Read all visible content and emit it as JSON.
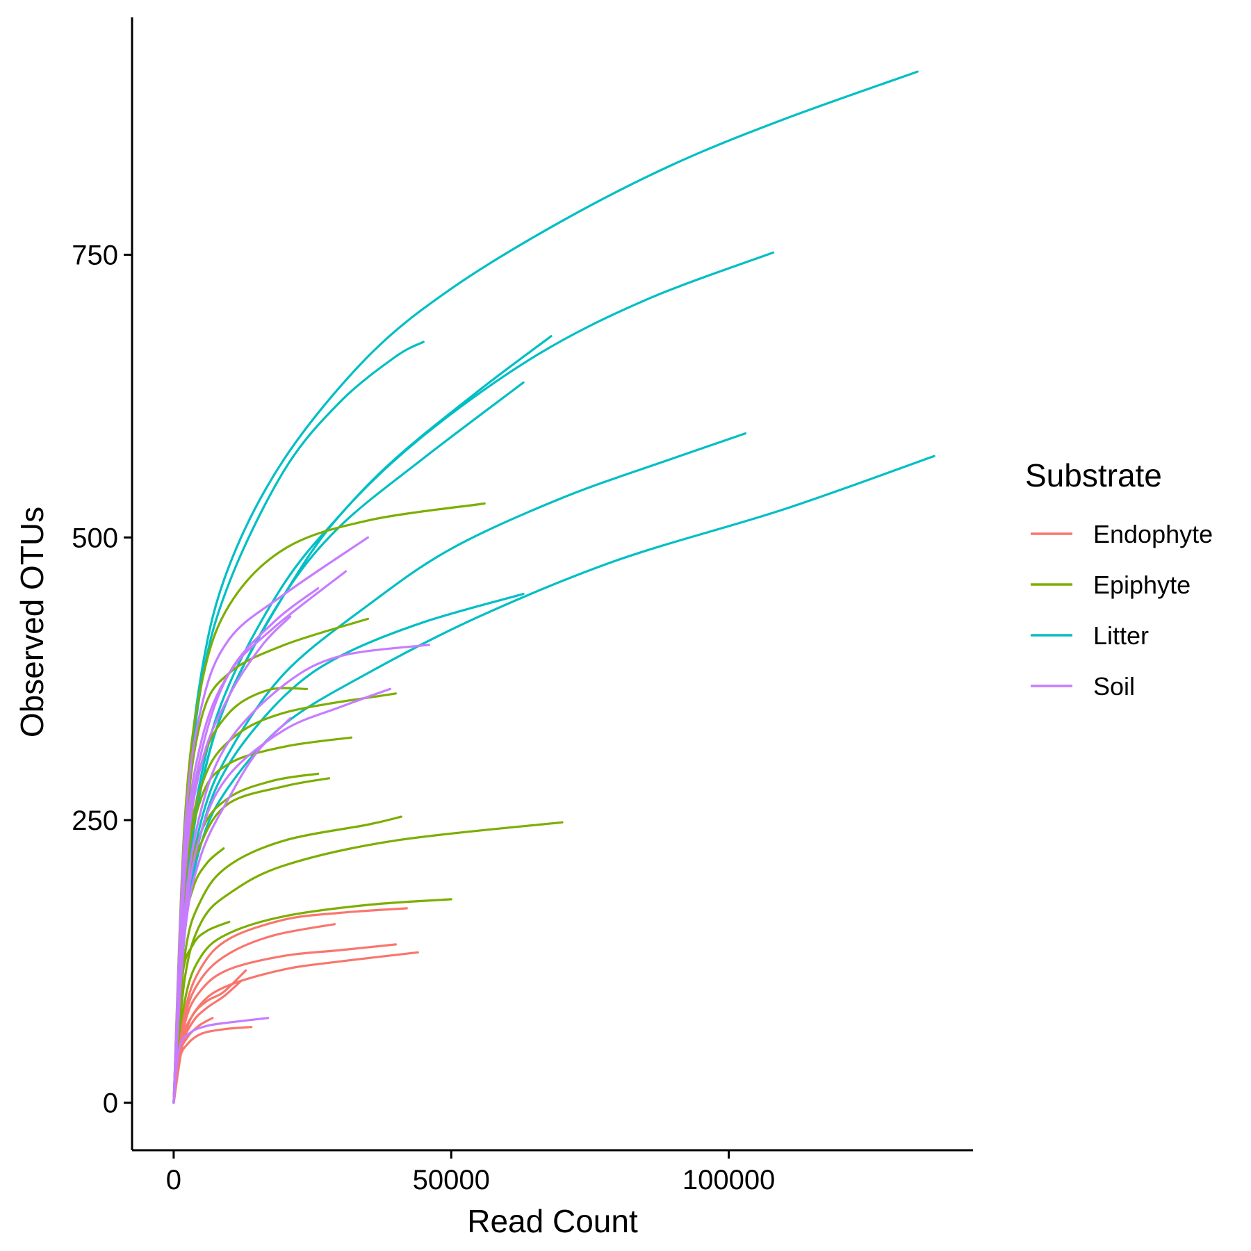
{
  "chart_data": {
    "type": "line",
    "xlabel": "Read Count",
    "ylabel": "Observed OTUs",
    "xlim": [
      -7500,
      144000
    ],
    "ylim": [
      -42,
      960
    ],
    "xticks": [
      0,
      50000,
      100000
    ],
    "xtick_labels": [
      "0",
      "50000",
      "100000"
    ],
    "yticks": [
      0,
      250,
      500,
      750
    ],
    "ytick_labels": [
      "0",
      "250",
      "500",
      "750"
    ],
    "grid": false,
    "legend": {
      "title": "Substrate",
      "placement": "right",
      "entries": [
        {
          "label": "Endophyte",
          "color": "#F8766D"
        },
        {
          "label": "Epiphyte",
          "color": "#7CAE00"
        },
        {
          "label": "Litter",
          "color": "#00BFC4"
        },
        {
          "label": "Soil",
          "color": "#C77CFF"
        }
      ]
    },
    "series": [
      {
        "group": "Litter",
        "color": "#00BFC4",
        "points": [
          [
            0,
            0
          ],
          [
            2000,
            240
          ],
          [
            5000,
            380
          ],
          [
            10000,
            475
          ],
          [
            20000,
            570
          ],
          [
            35000,
            660
          ],
          [
            50000,
            720
          ],
          [
            70000,
            780
          ],
          [
            90000,
            830
          ],
          [
            110000,
            870
          ],
          [
            134000,
            912
          ]
        ]
      },
      {
        "group": "Litter",
        "color": "#00BFC4",
        "points": [
          [
            0,
            0
          ],
          [
            2000,
            230
          ],
          [
            5000,
            370
          ],
          [
            10000,
            460
          ],
          [
            20000,
            560
          ],
          [
            30000,
            620
          ],
          [
            40000,
            660
          ],
          [
            45000,
            673
          ]
        ]
      },
      {
        "group": "Litter",
        "color": "#00BFC4",
        "points": [
          [
            0,
            0
          ],
          [
            2000,
            180
          ],
          [
            5000,
            280
          ],
          [
            10000,
            360
          ],
          [
            20000,
            450
          ],
          [
            30000,
            520
          ],
          [
            45000,
            590
          ],
          [
            65000,
            660
          ],
          [
            85000,
            710
          ],
          [
            108000,
            752
          ]
        ]
      },
      {
        "group": "Litter",
        "color": "#00BFC4",
        "points": [
          [
            0,
            0
          ],
          [
            2000,
            180
          ],
          [
            5000,
            290
          ],
          [
            10000,
            370
          ],
          [
            20000,
            460
          ],
          [
            30000,
            520
          ],
          [
            40000,
            570
          ],
          [
            55000,
            630
          ],
          [
            68000,
            678
          ]
        ]
      },
      {
        "group": "Litter",
        "color": "#00BFC4",
        "points": [
          [
            0,
            0
          ],
          [
            2000,
            170
          ],
          [
            5000,
            280
          ],
          [
            10000,
            360
          ],
          [
            20000,
            450
          ],
          [
            30000,
            510
          ],
          [
            45000,
            570
          ],
          [
            63000,
            637
          ]
        ]
      },
      {
        "group": "Litter",
        "color": "#00BFC4",
        "points": [
          [
            0,
            0
          ],
          [
            2000,
            160
          ],
          [
            5000,
            250
          ],
          [
            10000,
            310
          ],
          [
            20000,
            380
          ],
          [
            35000,
            440
          ],
          [
            50000,
            490
          ],
          [
            70000,
            535
          ],
          [
            90000,
            570
          ],
          [
            103000,
            592
          ]
        ]
      },
      {
        "group": "Litter",
        "color": "#00BFC4",
        "points": [
          [
            0,
            0
          ],
          [
            2000,
            150
          ],
          [
            5000,
            230
          ],
          [
            10000,
            280
          ],
          [
            20000,
            335
          ],
          [
            35000,
            380
          ],
          [
            55000,
            430
          ],
          [
            80000,
            480
          ],
          [
            110000,
            525
          ],
          [
            137000,
            572
          ]
        ]
      },
      {
        "group": "Litter",
        "color": "#00BFC4",
        "points": [
          [
            0,
            0
          ],
          [
            2000,
            150
          ],
          [
            5000,
            240
          ],
          [
            10000,
            300
          ],
          [
            20000,
            360
          ],
          [
            30000,
            395
          ],
          [
            45000,
            425
          ],
          [
            63000,
            450
          ]
        ]
      },
      {
        "group": "Epiphyte",
        "color": "#7CAE00",
        "points": [
          [
            0,
            0
          ],
          [
            2000,
            250
          ],
          [
            5000,
            370
          ],
          [
            10000,
            440
          ],
          [
            20000,
            490
          ],
          [
            35000,
            515
          ],
          [
            56000,
            530
          ]
        ]
      },
      {
        "group": "Epiphyte",
        "color": "#7CAE00",
        "points": [
          [
            0,
            0
          ],
          [
            2000,
            230
          ],
          [
            5000,
            340
          ],
          [
            10000,
            380
          ],
          [
            20000,
            405
          ],
          [
            35000,
            428
          ]
        ]
      },
      {
        "group": "Epiphyte",
        "color": "#7CAE00",
        "points": [
          [
            0,
            0
          ],
          [
            2000,
            210
          ],
          [
            5000,
            300
          ],
          [
            10000,
            345
          ],
          [
            17000,
            365
          ],
          [
            24000,
            366
          ]
        ]
      },
      {
        "group": "Epiphyte",
        "color": "#7CAE00",
        "points": [
          [
            0,
            0
          ],
          [
            2000,
            200
          ],
          [
            5000,
            280
          ],
          [
            10000,
            320
          ],
          [
            20000,
            345
          ],
          [
            40000,
            362
          ]
        ]
      },
      {
        "group": "Epiphyte",
        "color": "#7CAE00",
        "points": [
          [
            0,
            0
          ],
          [
            2000,
            190
          ],
          [
            5000,
            270
          ],
          [
            10000,
            300
          ],
          [
            20000,
            315
          ],
          [
            32000,
            323
          ]
        ]
      },
      {
        "group": "Epiphyte",
        "color": "#7CAE00",
        "points": [
          [
            0,
            0
          ],
          [
            2000,
            170
          ],
          [
            5000,
            240
          ],
          [
            10000,
            270
          ],
          [
            18000,
            285
          ],
          [
            26000,
            291
          ]
        ]
      },
      {
        "group": "Epiphyte",
        "color": "#7CAE00",
        "points": [
          [
            0,
            0
          ],
          [
            2000,
            170
          ],
          [
            5000,
            230
          ],
          [
            10000,
            265
          ],
          [
            20000,
            280
          ],
          [
            28000,
            287
          ]
        ]
      },
      {
        "group": "Epiphyte",
        "color": "#7CAE00",
        "points": [
          [
            0,
            0
          ],
          [
            2000,
            130
          ],
          [
            5000,
            180
          ],
          [
            10000,
            210
          ],
          [
            20000,
            232
          ],
          [
            35000,
            246
          ],
          [
            41000,
            253
          ]
        ]
      },
      {
        "group": "Epiphyte",
        "color": "#7CAE00",
        "points": [
          [
            0,
            0
          ],
          [
            2000,
            110
          ],
          [
            5000,
            160
          ],
          [
            10000,
            185
          ],
          [
            20000,
            210
          ],
          [
            40000,
            232
          ],
          [
            70000,
            248
          ]
        ]
      },
      {
        "group": "Epiphyte",
        "color": "#7CAE00",
        "points": [
          [
            0,
            0
          ],
          [
            1500,
            140
          ],
          [
            3500,
            190
          ],
          [
            6000,
            212
          ],
          [
            9000,
            225
          ]
        ]
      },
      {
        "group": "Epiphyte",
        "color": "#7CAE00",
        "points": [
          [
            0,
            0
          ],
          [
            2000,
            90
          ],
          [
            5000,
            130
          ],
          [
            10000,
            150
          ],
          [
            20000,
            165
          ],
          [
            35000,
            175
          ],
          [
            50000,
            180
          ]
        ]
      },
      {
        "group": "Epiphyte",
        "color": "#7CAE00",
        "points": [
          [
            0,
            0
          ],
          [
            1500,
            110
          ],
          [
            3500,
            140
          ],
          [
            6000,
            152
          ],
          [
            10000,
            160
          ]
        ]
      },
      {
        "group": "Endophyte",
        "color": "#F8766D",
        "points": [
          [
            0,
            0
          ],
          [
            2000,
            80
          ],
          [
            5000,
            120
          ],
          [
            10000,
            145
          ],
          [
            20000,
            162
          ],
          [
            30000,
            168
          ],
          [
            42000,
            172
          ]
        ]
      },
      {
        "group": "Endophyte",
        "color": "#F8766D",
        "points": [
          [
            0,
            0
          ],
          [
            2000,
            75
          ],
          [
            5000,
            110
          ],
          [
            10000,
            132
          ],
          [
            18000,
            148
          ],
          [
            29000,
            158
          ]
        ]
      },
      {
        "group": "Endophyte",
        "color": "#F8766D",
        "points": [
          [
            0,
            0
          ],
          [
            2000,
            70
          ],
          [
            5000,
            100
          ],
          [
            10000,
            118
          ],
          [
            20000,
            130
          ],
          [
            30000,
            135
          ],
          [
            40000,
            140
          ]
        ]
      },
      {
        "group": "Endophyte",
        "color": "#F8766D",
        "points": [
          [
            0,
            0
          ],
          [
            2000,
            60
          ],
          [
            5000,
            88
          ],
          [
            10000,
            104
          ],
          [
            20000,
            118
          ],
          [
            30000,
            125
          ],
          [
            44000,
            133
          ]
        ]
      },
      {
        "group": "Endophyte",
        "color": "#F8766D",
        "points": [
          [
            0,
            0
          ],
          [
            1500,
            55
          ],
          [
            3500,
            78
          ],
          [
            6000,
            90
          ],
          [
            9000,
            98
          ],
          [
            13000,
            117
          ]
        ]
      },
      {
        "group": "Endophyte",
        "color": "#F8766D",
        "points": [
          [
            0,
            0
          ],
          [
            1500,
            50
          ],
          [
            3500,
            72
          ],
          [
            6000,
            84
          ],
          [
            9000,
            94
          ],
          [
            12000,
            107
          ]
        ]
      },
      {
        "group": "Endophyte",
        "color": "#F8766D",
        "points": [
          [
            0,
            0
          ],
          [
            1000,
            42
          ],
          [
            2500,
            58
          ],
          [
            4500,
            68
          ],
          [
            7000,
            75
          ]
        ]
      },
      {
        "group": "Endophyte",
        "color": "#F8766D",
        "points": [
          [
            0,
            0
          ],
          [
            1000,
            38
          ],
          [
            2500,
            52
          ],
          [
            5000,
            61
          ],
          [
            9000,
            65
          ],
          [
            14000,
            67
          ]
        ]
      },
      {
        "group": "Soil",
        "color": "#C77CFF",
        "points": [
          [
            0,
            0
          ],
          [
            2000,
            240
          ],
          [
            5000,
            350
          ],
          [
            10000,
            410
          ],
          [
            20000,
            450
          ],
          [
            35000,
            500
          ]
        ]
      },
      {
        "group": "Soil",
        "color": "#C77CFF",
        "points": [
          [
            0,
            0
          ],
          [
            2000,
            220
          ],
          [
            5000,
            320
          ],
          [
            10000,
            380
          ],
          [
            18000,
            420
          ],
          [
            31000,
            470
          ]
        ]
      },
      {
        "group": "Soil",
        "color": "#C77CFF",
        "points": [
          [
            0,
            0
          ],
          [
            2000,
            210
          ],
          [
            5000,
            310
          ],
          [
            10000,
            380
          ],
          [
            18000,
            425
          ],
          [
            26000,
            455
          ]
        ]
      },
      {
        "group": "Soil",
        "color": "#C77CFF",
        "points": [
          [
            0,
            0
          ],
          [
            2000,
            200
          ],
          [
            5000,
            300
          ],
          [
            10000,
            360
          ],
          [
            16000,
            405
          ],
          [
            21000,
            430
          ]
        ]
      },
      {
        "group": "Soil",
        "color": "#C77CFF",
        "points": [
          [
            0,
            0
          ],
          [
            2000,
            170
          ],
          [
            5000,
            260
          ],
          [
            10000,
            320
          ],
          [
            20000,
            370
          ],
          [
            30000,
            395
          ],
          [
            46000,
            405
          ]
        ]
      },
      {
        "group": "Soil",
        "color": "#C77CFF",
        "points": [
          [
            0,
            0
          ],
          [
            2000,
            160
          ],
          [
            5000,
            240
          ],
          [
            10000,
            290
          ],
          [
            20000,
            330
          ],
          [
            30000,
            350
          ],
          [
            39000,
            366
          ]
        ]
      },
      {
        "group": "Soil",
        "color": "#C77CFF",
        "points": [
          [
            0,
            0
          ],
          [
            2000,
            150
          ],
          [
            5000,
            220
          ],
          [
            10000,
            270
          ],
          [
            15000,
            310
          ],
          [
            21000,
            340
          ]
        ]
      },
      {
        "group": "Soil",
        "color": "#C77CFF",
        "points": [
          [
            0,
            0
          ],
          [
            1000,
            48
          ],
          [
            3000,
            62
          ],
          [
            6000,
            68
          ],
          [
            10000,
            71
          ],
          [
            17000,
            75
          ]
        ]
      }
    ]
  }
}
